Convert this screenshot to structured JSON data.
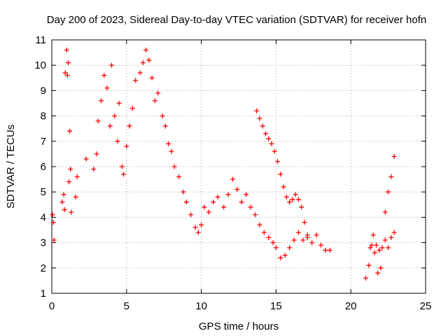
{
  "chart_data": {
    "type": "scatter",
    "title": "Day 200 of 2023, Sidereal Day-to-day VTEC variation (SDTVAR) for receiver hofn",
    "xlabel": "GPS time / hours",
    "ylabel": "SDTVAR / TECUs",
    "xlim": [
      0,
      25
    ],
    "ylim": [
      1,
      11
    ],
    "xticks": [
      "0",
      "5",
      "10",
      "15",
      "20",
      "25"
    ],
    "yticks": [
      "1",
      "2",
      "3",
      "4",
      "5",
      "6",
      "7",
      "8",
      "9",
      "10",
      "11"
    ],
    "grid": true,
    "marker": "plus",
    "series": [
      {
        "name": "SDTVAR",
        "color": "#ff0000",
        "points": [
          [
            0.05,
            4.1
          ],
          [
            0.1,
            3.8
          ],
          [
            0.15,
            3.1
          ],
          [
            0.7,
            4.6
          ],
          [
            0.8,
            4.9
          ],
          [
            0.85,
            4.3
          ],
          [
            0.9,
            9.7
          ],
          [
            1.0,
            10.6
          ],
          [
            1.05,
            9.6
          ],
          [
            1.1,
            10.1
          ],
          [
            1.15,
            5.4
          ],
          [
            1.2,
            7.4
          ],
          [
            1.25,
            5.9
          ],
          [
            1.3,
            4.2
          ],
          [
            1.6,
            4.8
          ],
          [
            1.7,
            5.6
          ],
          [
            2.3,
            6.3
          ],
          [
            2.8,
            5.9
          ],
          [
            3.0,
            6.5
          ],
          [
            3.1,
            7.8
          ],
          [
            3.3,
            8.6
          ],
          [
            3.5,
            9.6
          ],
          [
            3.7,
            9.1
          ],
          [
            3.9,
            7.6
          ],
          [
            4.0,
            10.0
          ],
          [
            4.2,
            8.0
          ],
          [
            4.4,
            7.0
          ],
          [
            4.5,
            8.5
          ],
          [
            4.7,
            6.0
          ],
          [
            4.8,
            5.7
          ],
          [
            5.0,
            6.8
          ],
          [
            5.2,
            7.6
          ],
          [
            5.4,
            8.3
          ],
          [
            5.6,
            9.4
          ],
          [
            5.9,
            9.7
          ],
          [
            6.1,
            10.1
          ],
          [
            6.3,
            10.6
          ],
          [
            6.5,
            10.2
          ],
          [
            6.7,
            9.5
          ],
          [
            6.9,
            8.6
          ],
          [
            7.1,
            8.9
          ],
          [
            7.4,
            8.0
          ],
          [
            7.6,
            7.6
          ],
          [
            7.8,
            6.9
          ],
          [
            8.0,
            6.6
          ],
          [
            8.2,
            6.0
          ],
          [
            8.5,
            5.6
          ],
          [
            8.8,
            5.0
          ],
          [
            9.0,
            4.6
          ],
          [
            9.3,
            4.1
          ],
          [
            9.6,
            3.6
          ],
          [
            9.8,
            3.4
          ],
          [
            10.0,
            3.7
          ],
          [
            10.2,
            4.4
          ],
          [
            10.5,
            4.2
          ],
          [
            10.8,
            4.6
          ],
          [
            11.1,
            4.8
          ],
          [
            11.5,
            4.4
          ],
          [
            11.8,
            4.9
          ],
          [
            12.1,
            5.5
          ],
          [
            12.4,
            5.1
          ],
          [
            12.7,
            4.6
          ],
          [
            13.0,
            4.9
          ],
          [
            13.3,
            4.4
          ],
          [
            13.6,
            4.1
          ],
          [
            13.9,
            3.7
          ],
          [
            14.2,
            3.4
          ],
          [
            14.5,
            3.2
          ],
          [
            14.8,
            3.0
          ],
          [
            15.0,
            2.8
          ],
          [
            15.3,
            2.4
          ],
          [
            15.6,
            2.5
          ],
          [
            15.9,
            2.8
          ],
          [
            16.2,
            3.1
          ],
          [
            16.5,
            3.4
          ],
          [
            16.8,
            3.1
          ],
          [
            17.1,
            3.2
          ],
          [
            17.4,
            3.0
          ],
          [
            17.7,
            3.3
          ],
          [
            18.0,
            2.9
          ],
          [
            18.3,
            2.7
          ],
          [
            18.6,
            2.7
          ],
          [
            13.7,
            8.2
          ],
          [
            13.9,
            7.9
          ],
          [
            14.1,
            7.6
          ],
          [
            14.3,
            7.3
          ],
          [
            14.5,
            7.1
          ],
          [
            14.7,
            6.9
          ],
          [
            14.9,
            6.6
          ],
          [
            15.1,
            6.2
          ],
          [
            15.3,
            5.7
          ],
          [
            15.5,
            5.2
          ],
          [
            15.7,
            4.8
          ],
          [
            15.9,
            4.6
          ],
          [
            16.1,
            4.7
          ],
          [
            16.3,
            4.9
          ],
          [
            16.5,
            4.7
          ],
          [
            16.7,
            4.4
          ],
          [
            16.9,
            3.8
          ],
          [
            17.1,
            3.3
          ],
          [
            21.0,
            1.6
          ],
          [
            21.2,
            2.1
          ],
          [
            21.4,
            2.9
          ],
          [
            21.6,
            2.6
          ],
          [
            21.8,
            1.8
          ],
          [
            22.0,
            2.0
          ],
          [
            21.3,
            2.8
          ],
          [
            21.5,
            3.3
          ],
          [
            21.7,
            2.9
          ],
          [
            21.9,
            2.7
          ],
          [
            22.1,
            2.8
          ],
          [
            22.3,
            3.1
          ],
          [
            22.5,
            2.8
          ],
          [
            22.7,
            3.2
          ],
          [
            22.9,
            3.4
          ],
          [
            22.3,
            4.2
          ],
          [
            22.5,
            5.0
          ],
          [
            22.7,
            5.6
          ],
          [
            22.9,
            6.4
          ]
        ]
      }
    ]
  }
}
